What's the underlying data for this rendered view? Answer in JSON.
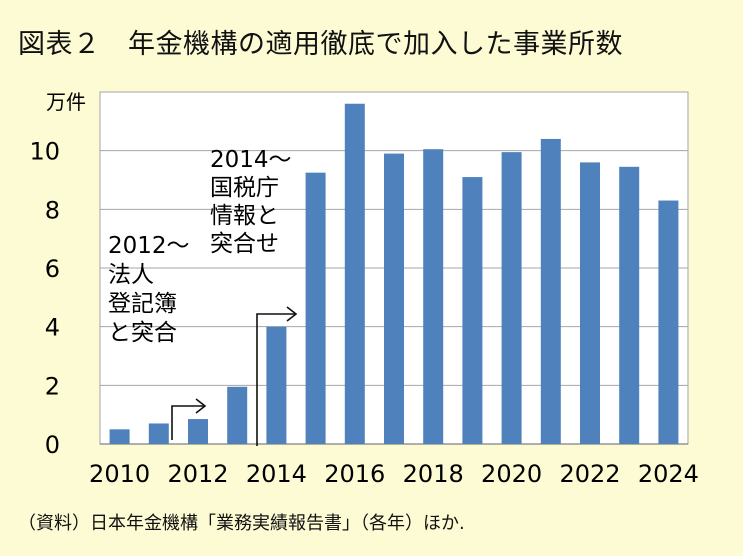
{
  "title": "図表２　年金機構の適用徹底で加入した事業所数",
  "source": "（資料）日本年金機構「業務実績報告書」（各年）ほか.",
  "chart_data": {
    "type": "bar",
    "ylabel": "万件",
    "ylim": [
      0,
      12
    ],
    "yticks": [
      0,
      2,
      4,
      6,
      8,
      10
    ],
    "xticks": [
      "2010",
      "2012",
      "2014",
      "2016",
      "2018",
      "2020",
      "2022",
      "2024"
    ],
    "categories": [
      "2010",
      "2011",
      "2012",
      "2013",
      "2014",
      "2015",
      "2016",
      "2017",
      "2018",
      "2019",
      "2020",
      "2021",
      "2022",
      "2023",
      "2024"
    ],
    "values": [
      0.5,
      0.7,
      0.85,
      1.95,
      4.0,
      9.25,
      11.6,
      9.9,
      10.05,
      9.1,
      9.95,
      10.4,
      9.6,
      9.45,
      8.3
    ],
    "bar_color": "#4f81bd",
    "grid": true,
    "annotations": [
      {
        "category": "2012",
        "lines": [
          "2012〜",
          "法人",
          "登記簿",
          "と突合"
        ]
      },
      {
        "category": "2014",
        "lines": [
          "2014〜",
          "国税庁",
          "情報と",
          "突合せ"
        ]
      }
    ]
  }
}
